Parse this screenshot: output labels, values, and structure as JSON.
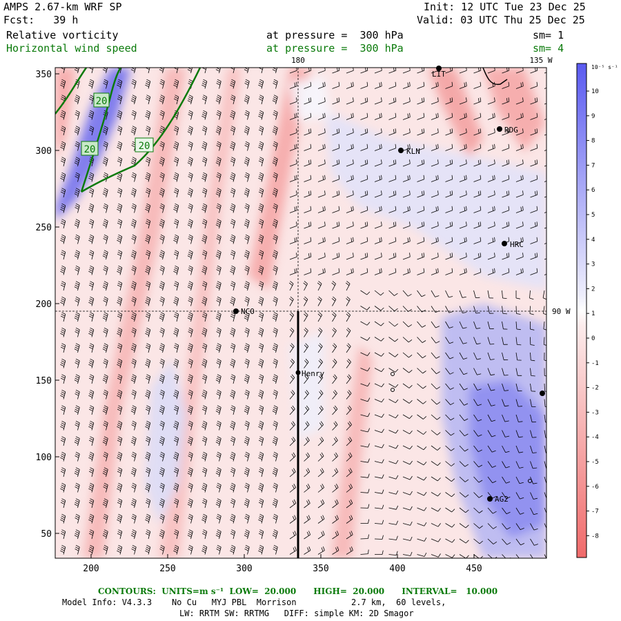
{
  "header": {
    "model": "AMPS 2.67-km WRF SP",
    "forecast": "Fcst:   39 h",
    "init": "Init: 12 UTC Tue 23 Dec 25",
    "valid": "Valid: 03 UTC Thu 25 Dec 25",
    "field1": "Relative vorticity",
    "field2": "Horizontal wind speed",
    "pressure1": "at pressure =  300 hPa",
    "pressure2": "at pressure =  300 hPa",
    "sm1": "sm= 1",
    "sm2": "sm= 4"
  },
  "map": {
    "lon_180": "180",
    "lon_135w": "135 W",
    "lon_90w": "90 W",
    "x_ticks": [
      "200",
      "250",
      "300",
      "350",
      "400",
      "450"
    ],
    "y_ticks": [
      "350",
      "300",
      "250",
      "200",
      "150",
      "100",
      "50"
    ],
    "contour_labels": [
      "20",
      "20",
      "20"
    ],
    "stations": [
      {
        "name": "LIT",
        "label": "LIT"
      },
      {
        "name": "RDG",
        "label": "RDG"
      },
      {
        "name": "KLN",
        "label": "KLN"
      },
      {
        "name": "HRC",
        "label": "HRC"
      },
      {
        "name": "NCO",
        "label": "NCO"
      },
      {
        "name": "Henry",
        "label": "Henry"
      },
      {
        "name": "AG2",
        "label": "AG2"
      }
    ]
  },
  "colorbar": {
    "unit": "10⁻⁵ s⁻¹",
    "labels": [
      "10",
      "9",
      "8",
      "7",
      "6",
      "5",
      "4",
      "3",
      "2",
      "1",
      "0",
      "-1",
      "-2",
      "-3",
      "-4",
      "-5",
      "-6",
      "-7",
      "-8"
    ],
    "color_positive": "#5a5af0",
    "color_negative": "#f06a6a"
  },
  "footer": {
    "contours": "CONTOURS:  UNITS=m s⁻¹  LOW=  20.000      HIGH=  20.000      INTERVAL=   10.000",
    "model_info": "Model Info: V4.3.3    No Cu   MYJ PBL  Morrison           2.7 km,  60 levels,",
    "physics": "LW: RRTM SW: RRTMG   DIFF: simple KM: 2D Smagor"
  }
}
